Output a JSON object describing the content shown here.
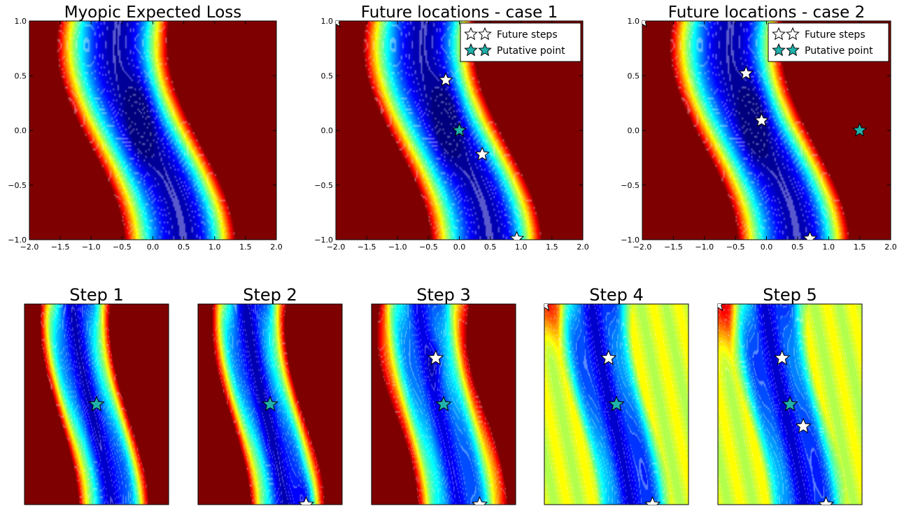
{
  "figure": {
    "background": "#ffffff"
  },
  "colormap": [
    "#00007f",
    "#0000ff",
    "#007fff",
    "#00ffff",
    "#7fff7f",
    "#ffff00",
    "#ff7f00",
    "#ff0000",
    "#7f0000"
  ],
  "chart_data": [
    {
      "type": "heatmap",
      "id": "top-1",
      "title": "Myopic Expected Loss",
      "xlim": [
        -2.0,
        2.0
      ],
      "ylim": [
        -1.0,
        1.0
      ],
      "xticks": [
        -2.0,
        -1.5,
        -1.0,
        -0.5,
        0.0,
        0.5,
        1.0,
        1.5,
        2.0
      ],
      "xtick_labels": [
        "−2.0",
        "−1.5",
        "−1.0",
        "−0.5",
        "0.0",
        "0.5",
        "1.0",
        "1.5",
        "2.0"
      ],
      "yticks": [
        -1.0,
        -0.5,
        0.0,
        0.5,
        1.0
      ],
      "ytick_labels": [
        "−1.0",
        "−0.5",
        "0.0",
        "0.5",
        "1.0"
      ],
      "grid": false,
      "field": "expected_loss",
      "stars": []
    },
    {
      "type": "heatmap",
      "id": "top-2",
      "title": "Future locations - case 1",
      "xlim": [
        -2.0,
        2.0
      ],
      "ylim": [
        -1.0,
        1.0
      ],
      "xticks": [
        -2.0,
        -1.5,
        -1.0,
        -0.5,
        0.0,
        0.5,
        1.0,
        1.5,
        2.0
      ],
      "xtick_labels": [
        "−2.0",
        "−1.5",
        "−1.0",
        "−0.5",
        "0.0",
        "0.5",
        "1.0",
        "1.5",
        "2.0"
      ],
      "yticks": [
        -1.0,
        -0.5,
        0.0,
        0.5,
        1.0
      ],
      "ytick_labels": [
        "−1.0",
        "−0.5",
        "0.0",
        "0.5",
        "1.0"
      ],
      "grid": false,
      "field": "expected_loss",
      "legend": {
        "placement": "top-right",
        "entries": [
          {
            "label": "Future steps",
            "color": "#ffffff"
          },
          {
            "label": "Putative point",
            "color": "#20b2aa"
          }
        ]
      },
      "stars": [
        {
          "x": -2.0,
          "y": 1.0,
          "kind": "future"
        },
        {
          "x": -0.22,
          "y": 0.46,
          "kind": "future"
        },
        {
          "x": 0.0,
          "y": 0.0,
          "kind": "putative"
        },
        {
          "x": 0.37,
          "y": -0.22,
          "kind": "future"
        },
        {
          "x": 0.93,
          "y": -0.99,
          "kind": "future"
        }
      ]
    },
    {
      "type": "heatmap",
      "id": "top-3",
      "title": "Future locations - case 2",
      "xlim": [
        -2.0,
        2.0
      ],
      "ylim": [
        -1.0,
        1.0
      ],
      "xticks": [
        -2.0,
        -1.5,
        -1.0,
        -0.5,
        0.0,
        0.5,
        1.0,
        1.5,
        2.0
      ],
      "xtick_labels": [
        "−2.0",
        "−1.5",
        "−1.0",
        "−0.5",
        "0.0",
        "0.5",
        "1.0",
        "1.5",
        "2.0"
      ],
      "yticks": [
        -1.0,
        -0.5,
        0.0,
        0.5,
        1.0
      ],
      "ytick_labels": [
        "−1.0",
        "−0.5",
        "0.0",
        "0.5",
        "1.0"
      ],
      "grid": false,
      "field": "expected_loss",
      "legend": {
        "placement": "top-right",
        "entries": [
          {
            "label": "Future steps",
            "color": "#ffffff"
          },
          {
            "label": "Putative point",
            "color": "#20b2aa"
          }
        ]
      },
      "stars": [
        {
          "x": -2.0,
          "y": 1.0,
          "kind": "future"
        },
        {
          "x": -0.33,
          "y": 0.52,
          "kind": "future"
        },
        {
          "x": -0.08,
          "y": 0.09,
          "kind": "future"
        },
        {
          "x": 1.5,
          "y": 0.0,
          "kind": "putative"
        },
        {
          "x": 0.7,
          "y": -0.99,
          "kind": "future"
        }
      ]
    },
    {
      "type": "heatmap",
      "id": "step-1",
      "title": "Step 1",
      "field": "step1",
      "axes_ticks": false,
      "stars": [
        {
          "x": 0.0,
          "y": 0.0,
          "kind": "putative"
        }
      ]
    },
    {
      "type": "heatmap",
      "id": "step-2",
      "title": "Step 2",
      "field": "step2",
      "axes_ticks": false,
      "stars": [
        {
          "x": 0.0,
          "y": 0.0,
          "kind": "putative"
        },
        {
          "x": 1.0,
          "y": -1.0,
          "kind": "future"
        }
      ]
    },
    {
      "type": "heatmap",
      "id": "step-3",
      "title": "Step 3",
      "field": "step3",
      "axes_ticks": false,
      "stars": [
        {
          "x": -0.22,
          "y": 0.46,
          "kind": "future"
        },
        {
          "x": 0.0,
          "y": 0.0,
          "kind": "putative"
        },
        {
          "x": 1.0,
          "y": -1.0,
          "kind": "future"
        }
      ]
    },
    {
      "type": "heatmap",
      "id": "step-4",
      "title": "Step 4",
      "field": "step4",
      "axes_ticks": false,
      "stars": [
        {
          "x": -2.0,
          "y": 1.0,
          "kind": "future"
        },
        {
          "x": -0.22,
          "y": 0.46,
          "kind": "future"
        },
        {
          "x": 0.0,
          "y": 0.0,
          "kind": "putative"
        },
        {
          "x": 1.0,
          "y": -1.0,
          "kind": "future"
        }
      ]
    },
    {
      "type": "heatmap",
      "id": "step-5",
      "title": "Step 5",
      "field": "step5",
      "axes_ticks": false,
      "stars": [
        {
          "x": -2.0,
          "y": 1.0,
          "kind": "future"
        },
        {
          "x": -0.22,
          "y": 0.46,
          "kind": "future"
        },
        {
          "x": 0.0,
          "y": 0.0,
          "kind": "putative"
        },
        {
          "x": 0.37,
          "y": -0.22,
          "kind": "future"
        },
        {
          "x": 1.0,
          "y": -1.0,
          "kind": "future"
        }
      ]
    }
  ]
}
